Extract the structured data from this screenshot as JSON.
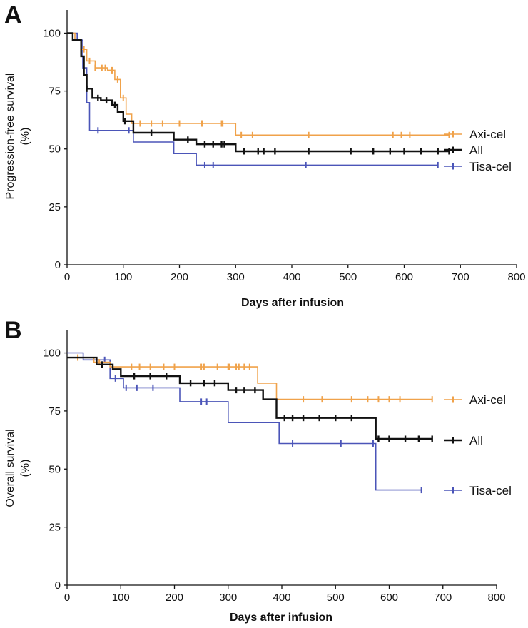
{
  "chart_data": [
    {
      "panel": "A",
      "type": "line",
      "xlabel": "Days after infusion",
      "ylabel": [
        "Progression-free survival",
        "(%)"
      ],
      "xlim": [
        0,
        800
      ],
      "ylim": [
        0,
        110
      ],
      "xticks": [
        0,
        100,
        200,
        300,
        400,
        500,
        600,
        700,
        800
      ],
      "yticks": [
        0,
        25,
        50,
        75,
        100
      ],
      "series": [
        {
          "name": "Axi-cel",
          "color": "#f0a24a",
          "steps": [
            [
              0,
              100
            ],
            [
              14,
              100
            ],
            [
              14,
              97
            ],
            [
              25,
              97
            ],
            [
              25,
              93
            ],
            [
              35,
              93
            ],
            [
              35,
              88
            ],
            [
              50,
              88
            ],
            [
              50,
              85
            ],
            [
              72,
              85
            ],
            [
              72,
              84
            ],
            [
              85,
              84
            ],
            [
              85,
              80
            ],
            [
              95,
              80
            ],
            [
              95,
              72
            ],
            [
              105,
              72
            ],
            [
              105,
              65
            ],
            [
              115,
              65
            ],
            [
              115,
              61
            ],
            [
              300,
              61
            ],
            [
              300,
              56
            ],
            [
              680,
              56
            ]
          ],
          "censor_x": [
            30,
            40,
            50,
            62,
            68,
            80,
            90,
            100,
            130,
            150,
            170,
            200,
            240,
            275,
            277,
            310,
            330,
            430,
            580,
            595,
            610,
            680
          ]
        },
        {
          "name": "All",
          "color": "#111111",
          "steps": [
            [
              0,
              100
            ],
            [
              10,
              100
            ],
            [
              10,
              97
            ],
            [
              25,
              97
            ],
            [
              25,
              90
            ],
            [
              30,
              90
            ],
            [
              30,
              82
            ],
            [
              35,
              82
            ],
            [
              35,
              76
            ],
            [
              45,
              76
            ],
            [
              45,
              72
            ],
            [
              60,
              72
            ],
            [
              60,
              71
            ],
            [
              80,
              71
            ],
            [
              80,
              69
            ],
            [
              90,
              69
            ],
            [
              90,
              66
            ],
            [
              100,
              66
            ],
            [
              100,
              62
            ],
            [
              118,
              62
            ],
            [
              118,
              57
            ],
            [
              190,
              57
            ],
            [
              190,
              54
            ],
            [
              230,
              54
            ],
            [
              230,
              52
            ],
            [
              300,
              52
            ],
            [
              300,
              49
            ],
            [
              680,
              49
            ]
          ],
          "censor_x": [
            35,
            55,
            70,
            85,
            103,
            150,
            215,
            245,
            260,
            275,
            280,
            315,
            340,
            350,
            370,
            430,
            505,
            545,
            575,
            600,
            630,
            660,
            680
          ]
        },
        {
          "name": "Tisa-cel",
          "color": "#4b55b8",
          "steps": [
            [
              0,
              100
            ],
            [
              18,
              100
            ],
            [
              18,
              97
            ],
            [
              28,
              97
            ],
            [
              28,
              85
            ],
            [
              35,
              85
            ],
            [
              35,
              70
            ],
            [
              40,
              70
            ],
            [
              40,
              58
            ],
            [
              118,
              58
            ],
            [
              118,
              53
            ],
            [
              190,
              53
            ],
            [
              190,
              48
            ],
            [
              230,
              48
            ],
            [
              230,
              43
            ],
            [
              660,
              43
            ]
          ],
          "censor_x": [
            55,
            110,
            245,
            260,
            425,
            660
          ]
        }
      ],
      "legend": {
        "position": "right",
        "entries": [
          "Axi-cel",
          "All",
          "Tisa-cel"
        ]
      }
    },
    {
      "panel": "B",
      "type": "line",
      "xlabel": "Days after infusion",
      "ylabel": [
        "Overall survival",
        "(%)"
      ],
      "xlim": [
        0,
        800
      ],
      "ylim": [
        0,
        110
      ],
      "xticks": [
        0,
        100,
        200,
        300,
        400,
        500,
        600,
        700,
        800
      ],
      "yticks": [
        0,
        25,
        50,
        75,
        100
      ],
      "series": [
        {
          "name": "Axi-cel",
          "color": "#f0a24a",
          "steps": [
            [
              0,
              98
            ],
            [
              50,
              98
            ],
            [
              50,
              96
            ],
            [
              80,
              96
            ],
            [
              80,
              94
            ],
            [
              355,
              94
            ],
            [
              355,
              87
            ],
            [
              390,
              87
            ],
            [
              390,
              80
            ],
            [
              680,
              80
            ]
          ],
          "censor_x": [
            20,
            60,
            120,
            135,
            155,
            180,
            200,
            250,
            255,
            280,
            300,
            302,
            315,
            320,
            330,
            340,
            440,
            475,
            530,
            560,
            580,
            600,
            620,
            680
          ]
        },
        {
          "name": "All",
          "color": "#111111",
          "steps": [
            [
              0,
              98
            ],
            [
              55,
              98
            ],
            [
              55,
              95
            ],
            [
              85,
              95
            ],
            [
              85,
              93
            ],
            [
              100,
              93
            ],
            [
              100,
              90
            ],
            [
              210,
              90
            ],
            [
              210,
              87
            ],
            [
              300,
              87
            ],
            [
              300,
              84
            ],
            [
              365,
              84
            ],
            [
              365,
              80
            ],
            [
              390,
              80
            ],
            [
              390,
              72
            ],
            [
              575,
              72
            ],
            [
              575,
              63
            ],
            [
              680,
              63
            ]
          ],
          "censor_x": [
            65,
            125,
            155,
            185,
            230,
            255,
            275,
            315,
            330,
            350,
            405,
            420,
            440,
            470,
            500,
            530,
            580,
            600,
            630,
            655,
            680
          ]
        },
        {
          "name": "Tisa-cel",
          "color": "#4b55b8",
          "steps": [
            [
              0,
              100
            ],
            [
              30,
              100
            ],
            [
              30,
              97
            ],
            [
              80,
              97
            ],
            [
              80,
              89
            ],
            [
              105,
              89
            ],
            [
              105,
              85
            ],
            [
              210,
              85
            ],
            [
              210,
              79
            ],
            [
              300,
              79
            ],
            [
              300,
              70
            ],
            [
              395,
              70
            ],
            [
              395,
              61
            ],
            [
              575,
              61
            ],
            [
              575,
              41
            ],
            [
              660,
              41
            ]
          ],
          "censor_x": [
            70,
            90,
            110,
            130,
            160,
            250,
            260,
            420,
            510,
            570,
            660
          ]
        }
      ],
      "legend": {
        "position": "right",
        "entries": [
          "Axi-cel",
          "All",
          "Tisa-cel"
        ]
      }
    }
  ]
}
